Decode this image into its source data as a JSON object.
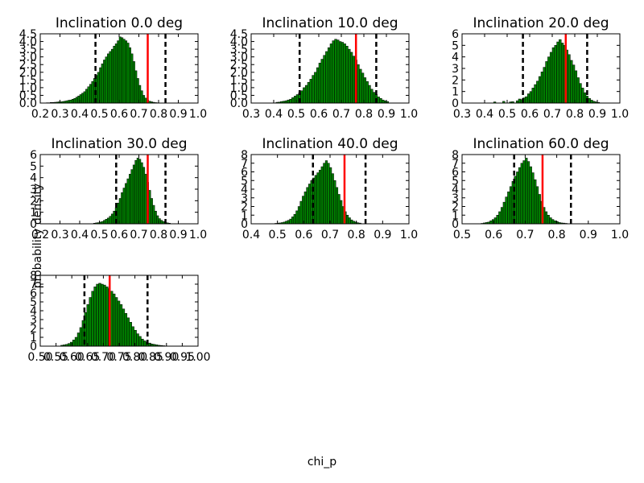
{
  "figure": {
    "xlabel": "chi_p",
    "ylabel": "probability density"
  },
  "chart_data": [
    {
      "type": "histogram",
      "title": "Inclination 0.0 deg",
      "xlim": [
        0.2,
        1.0
      ],
      "ylim": [
        0,
        4.5
      ],
      "xticks": [
        "0.2",
        "0.3",
        "0.4",
        "0.5",
        "0.6",
        "0.7",
        "0.8",
        "0.9",
        "1.0"
      ],
      "yticks": [
        "0.0",
        "0.5",
        "1.0",
        "1.5",
        "2.0",
        "2.5",
        "3.0",
        "3.5",
        "4.0",
        "4.5"
      ],
      "bin_start": 0.23,
      "bin_width": 0.01,
      "values": [
        0.02,
        0.02,
        0.04,
        0.04,
        0.05,
        0.06,
        0.08,
        0.08,
        0.1,
        0.12,
        0.15,
        0.18,
        0.2,
        0.25,
        0.3,
        0.38,
        0.46,
        0.55,
        0.64,
        0.74,
        0.9,
        1.06,
        1.22,
        1.4,
        1.6,
        1.8,
        2.0,
        2.3,
        2.55,
        2.8,
        3.0,
        3.2,
        3.35,
        3.5,
        3.7,
        3.85,
        4.05,
        4.3,
        4.25,
        4.15,
        4.05,
        3.9,
        3.6,
        3.2,
        2.7,
        2.1,
        1.6,
        1.15,
        0.8,
        0.5,
        0.32,
        0.2,
        0.12,
        0.08,
        0.05,
        0.03,
        0.02
      ],
      "median": 0.745,
      "bounds": [
        0.48,
        0.835
      ],
      "colors": {
        "bar": "#008000",
        "median": "#ff0000",
        "bounds": "#000000"
      }
    },
    {
      "type": "histogram",
      "title": "Inclination 10.0 deg",
      "xlim": [
        0.3,
        1.0
      ],
      "ylim": [
        0,
        4.5
      ],
      "xticks": [
        "0.3",
        "0.4",
        "0.5",
        "0.6",
        "0.7",
        "0.8",
        "0.9",
        "1.0"
      ],
      "yticks": [
        "0.0",
        "0.5",
        "1.0",
        "1.5",
        "2.0",
        "2.5",
        "3.0",
        "3.5",
        "4.0",
        "4.5"
      ],
      "bin_start": 0.41,
      "bin_width": 0.01,
      "values": [
        0.05,
        0.06,
        0.1,
        0.12,
        0.15,
        0.2,
        0.25,
        0.35,
        0.45,
        0.55,
        0.65,
        0.8,
        1.0,
        1.15,
        1.35,
        1.55,
        1.8,
        2.0,
        2.3,
        2.6,
        2.85,
        3.1,
        3.35,
        3.6,
        3.85,
        4.05,
        4.15,
        4.1,
        4.0,
        3.95,
        3.85,
        3.7,
        3.5,
        3.3,
        3.05,
        2.8,
        2.5,
        2.2,
        1.95,
        1.65,
        1.4,
        1.15,
        0.9,
        0.7,
        0.55,
        0.4,
        0.3,
        0.2,
        0.14,
        0.1
      ],
      "median": 0.765,
      "bounds": [
        0.515,
        0.855
      ],
      "colors": {
        "bar": "#008000",
        "median": "#ff0000",
        "bounds": "#000000"
      }
    },
    {
      "type": "histogram",
      "title": "Inclination 20.0 deg",
      "xlim": [
        0.3,
        1.0
      ],
      "ylim": [
        0,
        6
      ],
      "xticks": [
        "0.3",
        "0.4",
        "0.5",
        "0.6",
        "0.7",
        "0.8",
        "0.9",
        "1.0"
      ],
      "yticks": [
        "0",
        "1",
        "2",
        "3",
        "4",
        "5",
        "6"
      ],
      "bin_start": 0.44,
      "bin_width": 0.01,
      "values": [
        0.1,
        0,
        0,
        0,
        0.15,
        0,
        0,
        0.1,
        0.12,
        0,
        0.2,
        0.35,
        0.3,
        0.45,
        0.55,
        0.8,
        1.0,
        1.3,
        1.6,
        1.9,
        2.3,
        2.7,
        3.1,
        3.6,
        4.0,
        4.4,
        4.8,
        5.0,
        5.3,
        5.5,
        5.2,
        5.0,
        4.6,
        4.2,
        3.7,
        3.3,
        2.8,
        2.2,
        1.7,
        1.3,
        0.9,
        0.6,
        0.4,
        0.25,
        0.15,
        0.1,
        0.06
      ],
      "median": 0.76,
      "bounds": [
        0.57,
        0.855
      ],
      "colors": {
        "bar": "#008000",
        "median": "#ff0000",
        "bounds": "#000000"
      }
    },
    {
      "type": "histogram",
      "title": "Inclination 30.0 deg",
      "xlim": [
        0.2,
        1.0
      ],
      "ylim": [
        0,
        6
      ],
      "xticks": [
        "0.2",
        "0.3",
        "0.4",
        "0.5",
        "0.6",
        "0.7",
        "0.8",
        "0.9",
        "1.0"
      ],
      "yticks": [
        "0",
        "1",
        "2",
        "3",
        "4",
        "5",
        "6"
      ],
      "bin_start": 0.47,
      "bin_width": 0.01,
      "values": [
        0.05,
        0.08,
        0.1,
        0.15,
        0.2,
        0.3,
        0.4,
        0.5,
        0.65,
        0.85,
        1.1,
        1.4,
        1.8,
        2.2,
        2.7,
        3.1,
        3.5,
        3.9,
        4.3,
        4.7,
        5.1,
        5.5,
        5.7,
        5.6,
        5.3,
        4.9,
        4.3,
        3.6,
        2.9,
        2.2,
        1.6,
        1.1,
        0.7,
        0.45,
        0.3,
        0.2,
        0.12,
        0.08,
        0.05
      ],
      "median": 0.745,
      "bounds": [
        0.585,
        0.835
      ],
      "colors": {
        "bar": "#008000",
        "median": "#ff0000",
        "bounds": "#000000"
      }
    },
    {
      "type": "histogram",
      "title": "Inclination 40.0 deg",
      "xlim": [
        0.4,
        1.0
      ],
      "ylim": [
        0,
        8
      ],
      "xticks": [
        "0.4",
        "0.5",
        "0.6",
        "0.7",
        "0.8",
        "0.9",
        "1.0"
      ],
      "yticks": [
        "0",
        "1",
        "2",
        "3",
        "4",
        "5",
        "6",
        "7",
        "8"
      ],
      "bin_start": 0.49,
      "bin_width": 0.008,
      "values": [
        0.05,
        0.08,
        0.1,
        0.14,
        0.2,
        0.3,
        0.4,
        0.55,
        0.8,
        1.1,
        1.5,
        2.0,
        2.6,
        3.2,
        3.7,
        4.2,
        4.6,
        5.0,
        5.3,
        5.6,
        5.9,
        6.2,
        6.6,
        7.0,
        7.3,
        7.0,
        6.5,
        5.8,
        5.0,
        4.2,
        3.4,
        2.7,
        2.0,
        1.4,
        1.0,
        0.7,
        0.45,
        0.3,
        0.2,
        0.12,
        0.08
      ],
      "median": 0.755,
      "bounds": [
        0.635,
        0.835
      ],
      "colors": {
        "bar": "#008000",
        "median": "#ff0000",
        "bounds": "#000000"
      }
    },
    {
      "type": "histogram",
      "title": "Inclination 60.0 deg",
      "xlim": [
        0.5,
        1.0
      ],
      "ylim": [
        0,
        8
      ],
      "xticks": [
        "0.5",
        "0.6",
        "0.7",
        "0.8",
        "0.9",
        "1.0"
      ],
      "yticks": [
        "0",
        "1",
        "2",
        "3",
        "4",
        "5",
        "6",
        "7",
        "8"
      ],
      "bin_start": 0.56,
      "bin_width": 0.007,
      "values": [
        0.05,
        0.1,
        0.15,
        0.2,
        0.35,
        0.5,
        0.7,
        1.0,
        1.4,
        1.9,
        2.5,
        3.1,
        3.7,
        4.3,
        4.9,
        5.5,
        6.0,
        6.5,
        7.0,
        7.3,
        7.6,
        7.2,
        6.6,
        5.9,
        5.1,
        4.3,
        3.4,
        2.6,
        1.9,
        1.4,
        1.0,
        0.7,
        0.5,
        0.35,
        0.25,
        0.15,
        0.1,
        0.08,
        0.05
      ],
      "median": 0.755,
      "bounds": [
        0.665,
        0.845
      ],
      "colors": {
        "bar": "#008000",
        "median": "#ff0000",
        "bounds": "#000000"
      }
    },
    {
      "type": "histogram",
      "title": "",
      "xlim": [
        0.5,
        1.0
      ],
      "ylim": [
        0,
        8
      ],
      "xticks": [
        "0.50",
        "0.55",
        "0.60",
        "0.65",
        "0.70",
        "0.75",
        "0.80",
        "0.85",
        "0.90",
        "0.95",
        "1.00"
      ],
      "yticks": [
        "0",
        "1",
        "2",
        "3",
        "4",
        "5",
        "6",
        "7",
        "8"
      ],
      "bin_start": 0.565,
      "bin_width": 0.0075,
      "values": [
        0.1,
        0.15,
        0.2,
        0.3,
        0.45,
        0.7,
        1.0,
        1.5,
        2.1,
        2.9,
        3.8,
        4.7,
        5.5,
        6.2,
        6.7,
        7.0,
        7.1,
        7.0,
        6.9,
        6.7,
        6.5,
        6.2,
        5.9,
        5.5,
        5.1,
        4.7,
        4.2,
        3.7,
        3.2,
        2.7,
        2.2,
        1.8,
        1.4,
        1.1,
        0.8,
        0.6,
        0.45,
        0.35,
        0.25,
        0.2,
        0.15,
        0.1,
        0.08,
        0.05
      ],
      "median": 0.72,
      "bounds": [
        0.64,
        0.84
      ],
      "colors": {
        "bar": "#008000",
        "median": "#ff0000",
        "bounds": "#000000"
      }
    }
  ]
}
